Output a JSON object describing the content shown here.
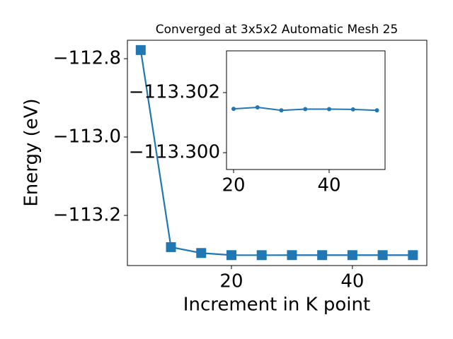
{
  "chart_data": [
    {
      "type": "line",
      "title": "Converged at 3x5x2 Automatic Mesh 25",
      "xlabel": "Increment in K point",
      "ylabel": "Energy (eV)",
      "x": [
        5,
        10,
        15,
        20,
        25,
        30,
        35,
        40,
        45,
        50
      ],
      "series": [
        {
          "color": "#1f77b4",
          "marker": "square",
          "values": [
            -112.778,
            -113.281,
            -113.296,
            -113.30146,
            -113.30151,
            -113.30141,
            -113.30145,
            -113.30145,
            -113.30144,
            -113.30141
          ]
        }
      ],
      "xlim": [
        2.8,
        52.3
      ],
      "ylim": [
        -113.328,
        -112.753
      ],
      "xticks": [
        20,
        40
      ],
      "yticks": [
        {
          "value": -113.2,
          "label": "−113.2"
        },
        {
          "value": -113.0,
          "label": "−113.0"
        },
        {
          "value": -112.8,
          "label": "−112.8"
        }
      ]
    },
    {
      "type": "line",
      "x": [
        20,
        25,
        30,
        35,
        40,
        45,
        50
      ],
      "series": [
        {
          "color": "#1f77b4",
          "marker": "circle",
          "values": [
            -113.30146,
            -113.30151,
            -113.30141,
            -113.30145,
            -113.30145,
            -113.30144,
            -113.30141
          ]
        }
      ],
      "xlim": [
        18.52,
        51.7
      ],
      "ylim": [
        -113.29944,
        -113.30339
      ],
      "xticks": [
        20,
        40
      ],
      "yticks": [
        {
          "value": -113.302,
          "label": "−113.302"
        },
        {
          "value": -113.3,
          "label": "−113.300"
        }
      ]
    }
  ]
}
